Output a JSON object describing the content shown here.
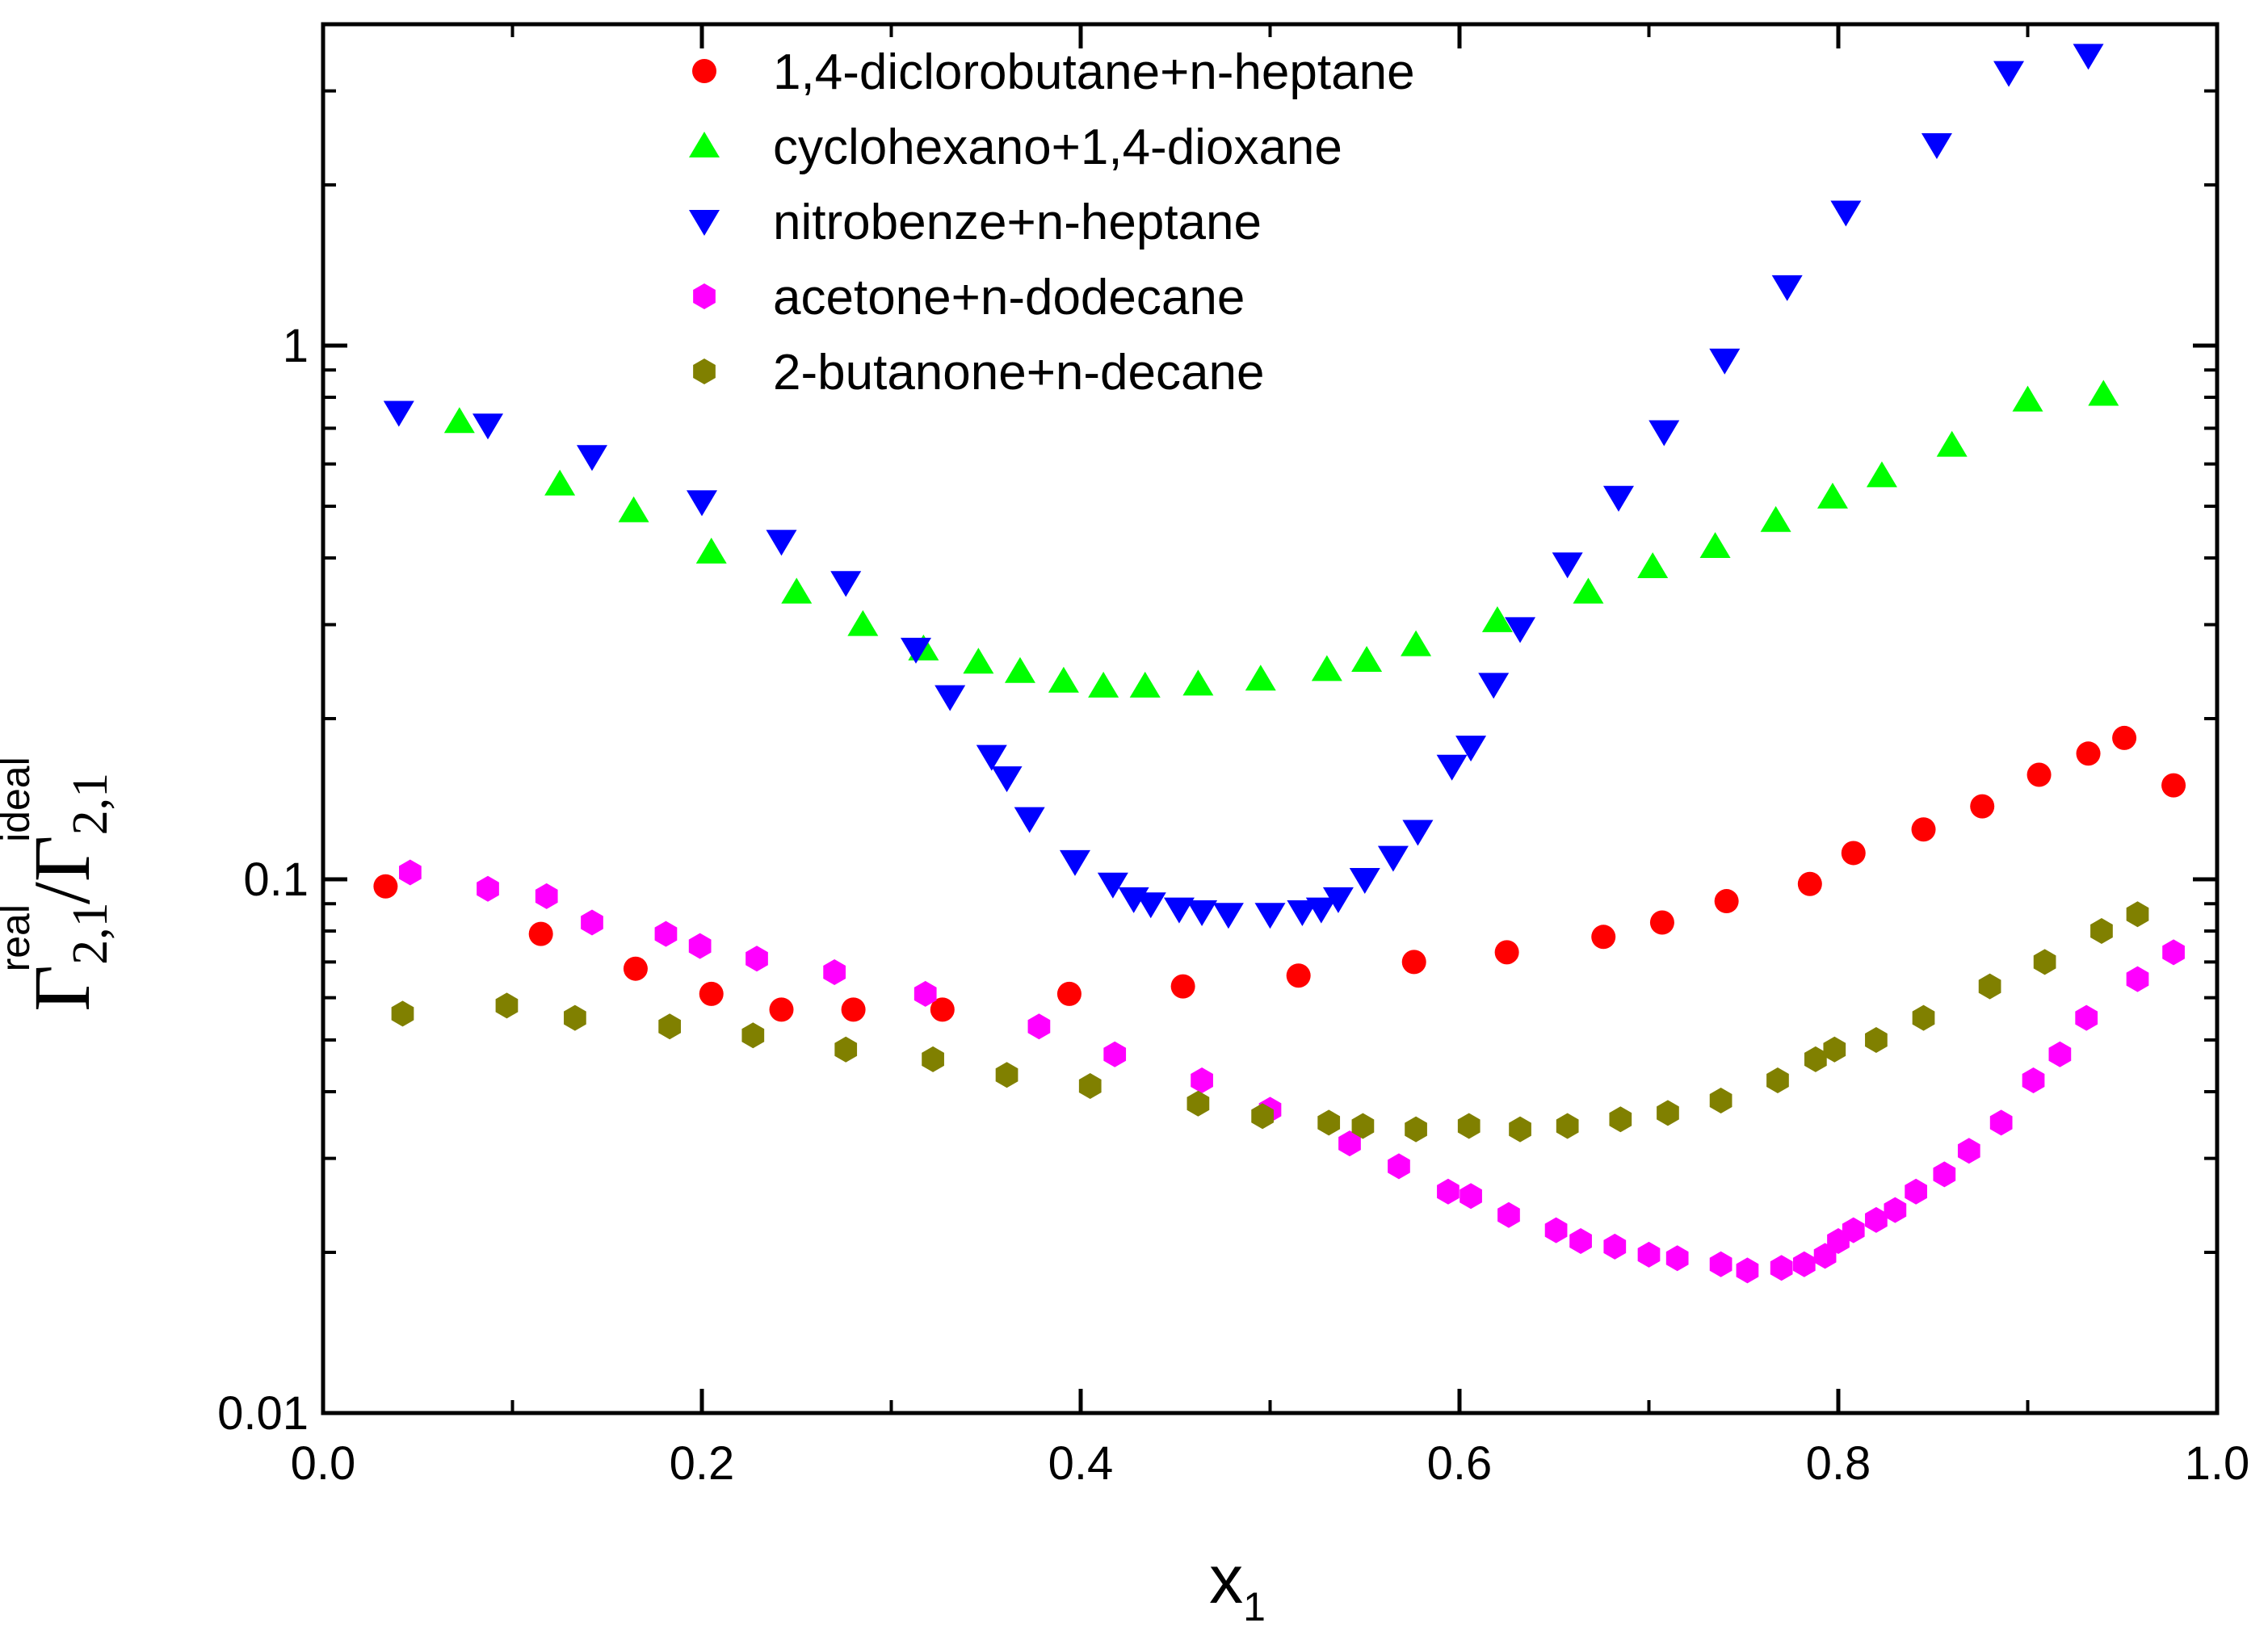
{
  "chart_data": {
    "type": "scatter",
    "title": "",
    "xlabel": {
      "main": "x",
      "sub": "1"
    },
    "ylabel": {
      "num_symbol": "Γ",
      "num_sub": "2,1",
      "num_sup": "real",
      "sep": "/",
      "den_symbol": "Γ",
      "den_sub": "2,1",
      "den_sup": "ideal"
    },
    "x_axis": {
      "min": 0.0,
      "max": 1.0,
      "scale": "linear",
      "ticks": [
        0.0,
        0.2,
        0.4,
        0.6,
        0.8,
        1.0
      ],
      "tick_labels": [
        "0.0",
        "0.2",
        "0.4",
        "0.6",
        "0.8",
        "1.0"
      ]
    },
    "y_axis": {
      "min": 0.01,
      "max": 4.0,
      "scale": "log",
      "ticks": [
        0.01,
        0.1,
        1
      ],
      "tick_labels": [
        "0.01",
        "0.1",
        "1"
      ]
    },
    "legend_position": "top-center",
    "series": [
      {
        "name": "1,4-diclorobutane+n-heptane",
        "marker": "circle",
        "color": "#ff0000",
        "x": [
          0.033,
          0.115,
          0.165,
          0.205,
          0.242,
          0.28,
          0.327,
          0.394,
          0.454,
          0.515,
          0.576,
          0.625,
          0.676,
          0.707,
          0.741,
          0.785,
          0.808,
          0.845,
          0.876,
          0.906,
          0.932,
          0.951,
          0.977
        ],
        "y": [
          0.097,
          0.079,
          0.068,
          0.061,
          0.057,
          0.057,
          0.057,
          0.061,
          0.063,
          0.066,
          0.07,
          0.073,
          0.078,
          0.083,
          0.091,
          0.098,
          0.112,
          0.124,
          0.137,
          0.157,
          0.172,
          0.184,
          0.15
        ]
      },
      {
        "name": "cyclohexano+1,4-dioxane",
        "marker": "triangle-up",
        "color": "#00ff00",
        "x": [
          0.072,
          0.125,
          0.164,
          0.205,
          0.25,
          0.285,
          0.317,
          0.346,
          0.368,
          0.391,
          0.412,
          0.434,
          0.462,
          0.495,
          0.53,
          0.551,
          0.577,
          0.62,
          0.668,
          0.702,
          0.735,
          0.767,
          0.797,
          0.823,
          0.86,
          0.9,
          0.94
        ],
        "y": [
          0.72,
          0.55,
          0.49,
          0.41,
          0.345,
          0.3,
          0.27,
          0.255,
          0.245,
          0.235,
          0.23,
          0.23,
          0.232,
          0.237,
          0.247,
          0.257,
          0.275,
          0.305,
          0.345,
          0.385,
          0.42,
          0.47,
          0.52,
          0.57,
          0.65,
          0.79,
          0.81
        ]
      },
      {
        "name": "nitrobenze+n-heptane",
        "marker": "triangle-down",
        "color": "#0000ff",
        "x": [
          0.04,
          0.087,
          0.142,
          0.2,
          0.242,
          0.276,
          0.313,
          0.331,
          0.353,
          0.361,
          0.373,
          0.397,
          0.417,
          0.428,
          0.437,
          0.452,
          0.464,
          0.478,
          0.5,
          0.517,
          0.527,
          0.536,
          0.55,
          0.565,
          0.578,
          0.596,
          0.606,
          0.618,
          0.632,
          0.657,
          0.684,
          0.708,
          0.74,
          0.773,
          0.804,
          0.852,
          0.89,
          0.932
        ],
        "y": [
          0.75,
          0.71,
          0.62,
          0.51,
          0.43,
          0.36,
          0.27,
          0.22,
          0.17,
          0.155,
          0.13,
          0.108,
          0.098,
          0.092,
          0.09,
          0.088,
          0.087,
          0.086,
          0.086,
          0.087,
          0.088,
          0.092,
          0.1,
          0.11,
          0.123,
          0.163,
          0.177,
          0.232,
          0.295,
          0.39,
          0.52,
          0.69,
          0.94,
          1.29,
          1.78,
          2.38,
          3.25,
          3.5
        ]
      },
      {
        "name": "acetone+n-dodecane",
        "marker": "hexagon",
        "color": "#ff00ff",
        "x": [
          0.046,
          0.087,
          0.118,
          0.142,
          0.181,
          0.199,
          0.229,
          0.27,
          0.318,
          0.378,
          0.418,
          0.464,
          0.5,
          0.542,
          0.568,
          0.594,
          0.606,
          0.626,
          0.651,
          0.664,
          0.682,
          0.7,
          0.715,
          0.738,
          0.752,
          0.77,
          0.782,
          0.793,
          0.8,
          0.808,
          0.82,
          0.83,
          0.841,
          0.856,
          0.869,
          0.886,
          0.903,
          0.917,
          0.931,
          0.958,
          0.977
        ],
        "y": [
          0.103,
          0.096,
          0.093,
          0.083,
          0.079,
          0.075,
          0.071,
          0.067,
          0.061,
          0.053,
          0.047,
          0.042,
          0.037,
          0.032,
          0.029,
          0.026,
          0.0255,
          0.0235,
          0.022,
          0.021,
          0.0205,
          0.0198,
          0.0195,
          0.019,
          0.0185,
          0.0187,
          0.019,
          0.0197,
          0.021,
          0.022,
          0.023,
          0.024,
          0.026,
          0.028,
          0.031,
          0.035,
          0.042,
          0.047,
          0.055,
          0.065,
          0.073
        ]
      },
      {
        "name": "2-butanone+n-decane",
        "marker": "hexagon",
        "color": "#808000",
        "x": [
          0.042,
          0.097,
          0.133,
          0.183,
          0.227,
          0.276,
          0.322,
          0.361,
          0.405,
          0.462,
          0.496,
          0.531,
          0.549,
          0.577,
          0.605,
          0.632,
          0.657,
          0.685,
          0.71,
          0.738,
          0.768,
          0.788,
          0.798,
          0.82,
          0.845,
          0.88,
          0.909,
          0.939,
          0.958
        ],
        "y": [
          0.056,
          0.058,
          0.055,
          0.053,
          0.051,
          0.048,
          0.046,
          0.043,
          0.041,
          0.038,
          0.036,
          0.035,
          0.0345,
          0.034,
          0.0345,
          0.034,
          0.0345,
          0.0355,
          0.0365,
          0.0385,
          0.042,
          0.046,
          0.048,
          0.05,
          0.055,
          0.063,
          0.07,
          0.08,
          0.086
        ]
      }
    ]
  }
}
